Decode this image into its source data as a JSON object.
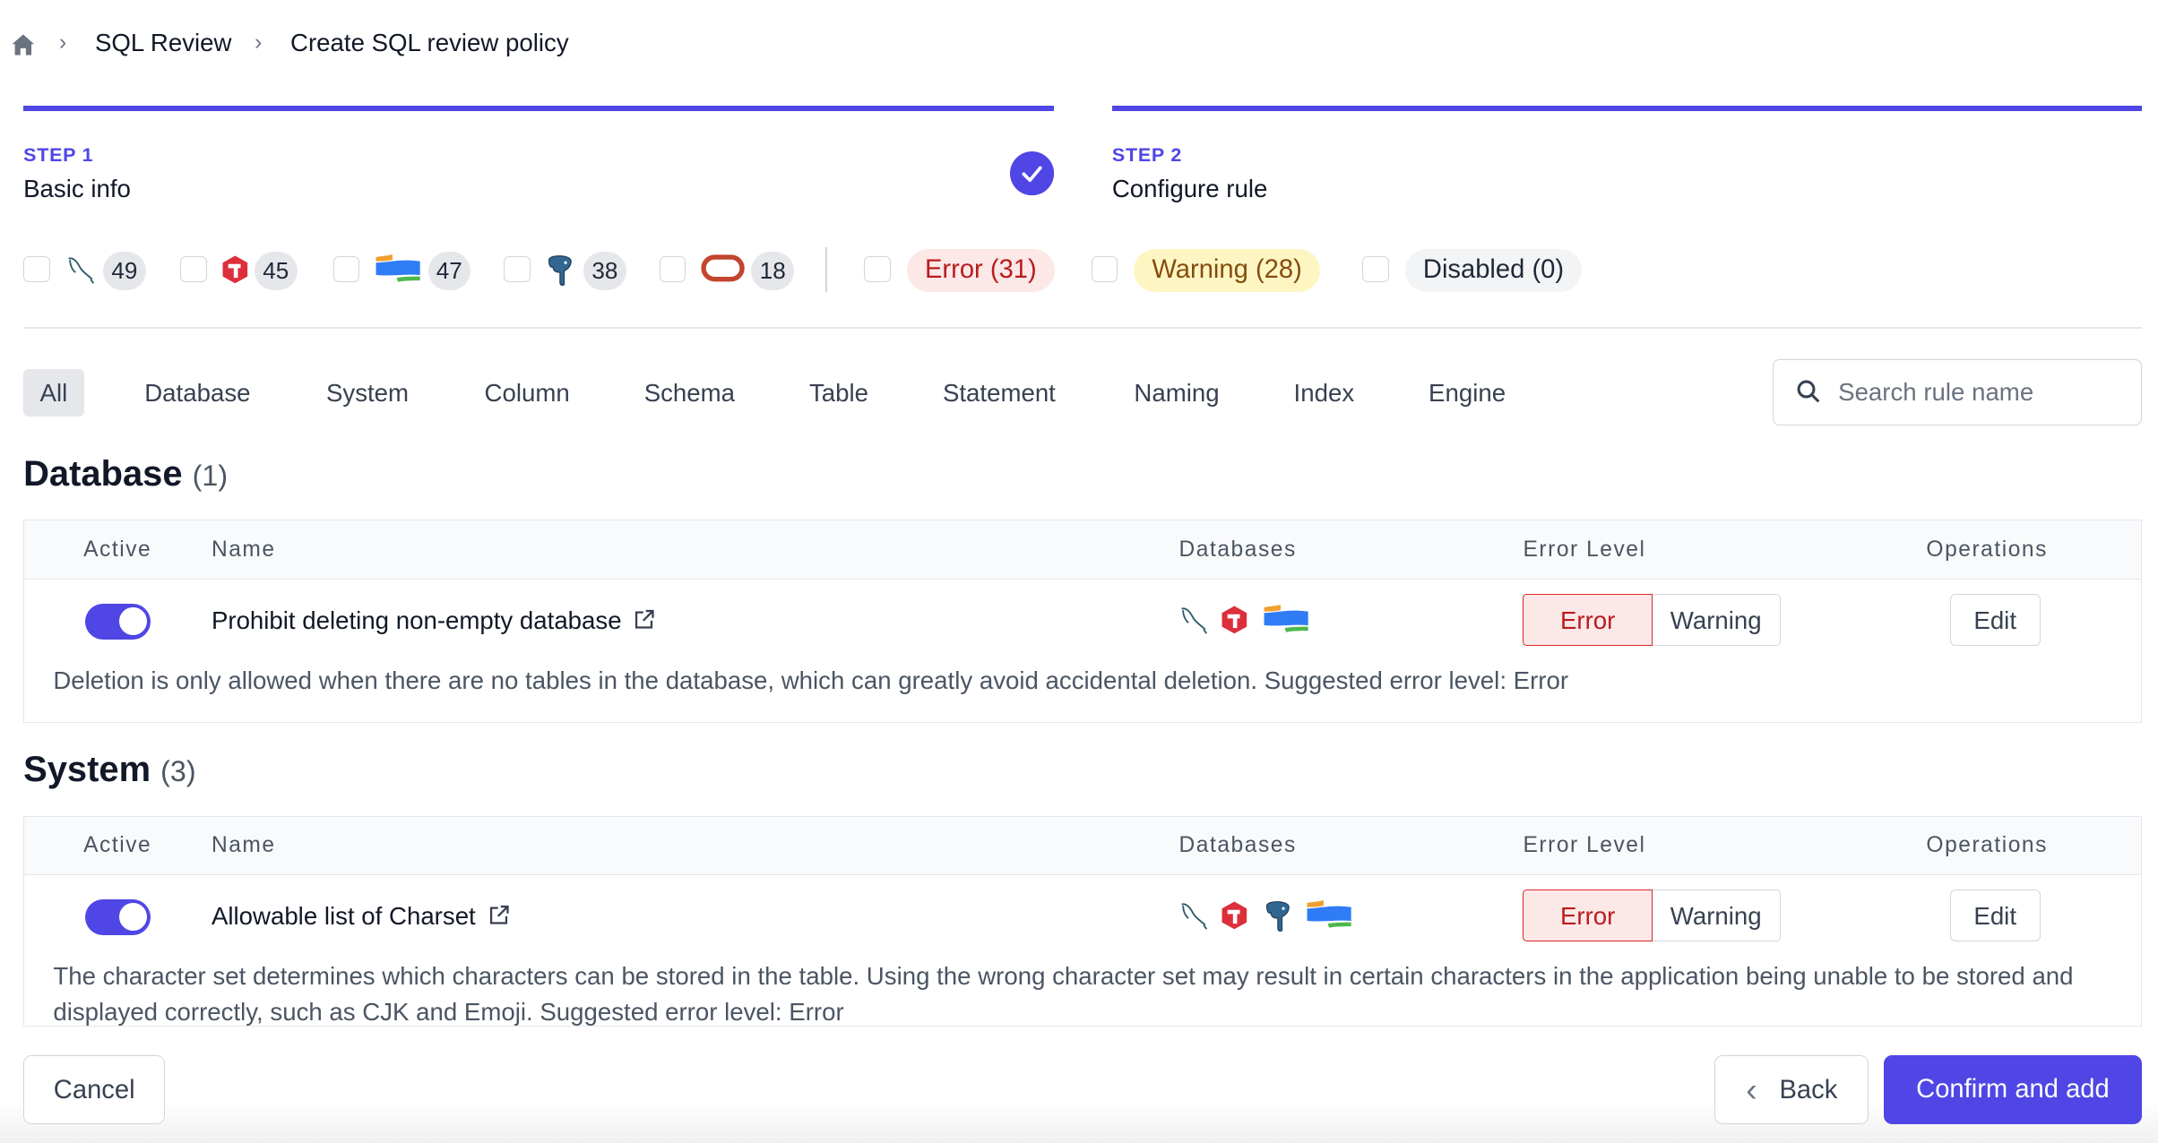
{
  "breadcrumb": {
    "home_icon": "home-icon",
    "items": [
      "SQL Review",
      "Create SQL review policy"
    ]
  },
  "steps": [
    {
      "label": "STEP 1",
      "title": "Basic info",
      "status": "complete"
    },
    {
      "label": "STEP 2",
      "title": "Configure rule",
      "status": "current"
    }
  ],
  "accent": "#4f46e5",
  "engine_filters": [
    {
      "engine": "mysql",
      "icon": "mysql-icon",
      "count": "49"
    },
    {
      "engine": "tidb",
      "icon": "tidb-icon",
      "count": "45"
    },
    {
      "engine": "oceanbase",
      "icon": "oceanbase-icon",
      "count": "47"
    },
    {
      "engine": "postgres",
      "icon": "postgres-icon",
      "count": "38"
    },
    {
      "engine": "oracle",
      "icon": "oracle-icon",
      "count": "18"
    }
  ],
  "level_filters": [
    {
      "label": "Error (31)"
    },
    {
      "label": "Warning (28)"
    },
    {
      "label": "Disabled (0)"
    }
  ],
  "tabs": [
    "All",
    "Database",
    "System",
    "Column",
    "Schema",
    "Table",
    "Statement",
    "Naming",
    "Index",
    "Engine"
  ],
  "search": {
    "placeholder": "Search rule name"
  },
  "columns": {
    "active": "Active",
    "name": "Name",
    "databases": "Databases",
    "level": "Error Level",
    "ops": "Operations"
  },
  "sections": [
    {
      "title": "Database",
      "count": "(1)",
      "rules": [
        {
          "name": "Prohibit deleting non-empty database",
          "active": true,
          "databases": [
            "mysql",
            "tidb",
            "oceanbase"
          ],
          "level": "Error",
          "error_label": "Error",
          "warning_label": "Warning",
          "edit_label": "Edit",
          "description": "Deletion is only allowed when there are no tables in the database, which can greatly avoid accidental deletion. Suggested error level: Error"
        }
      ]
    },
    {
      "title": "System",
      "count": "(3)",
      "rules": [
        {
          "name": "Allowable list of Charset",
          "active": true,
          "databases": [
            "mysql",
            "tidb",
            "postgres",
            "oceanbase"
          ],
          "level": "Error",
          "error_label": "Error",
          "warning_label": "Warning",
          "edit_label": "Edit",
          "description": "The character set determines which characters can be stored in the table. Using the wrong character set may result in certain characters in the application being unable to be stored and displayed correctly, such as CJK and Emoji. Suggested error level: Error"
        }
      ]
    }
  ],
  "footer": {
    "cancel": "Cancel",
    "back": "Back",
    "confirm": "Confirm and add"
  }
}
